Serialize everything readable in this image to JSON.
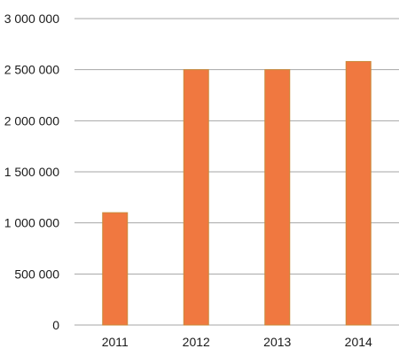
{
  "chart_data": {
    "type": "bar",
    "title": "",
    "xlabel": "",
    "ylabel": "",
    "categories": [
      "2011",
      "2012",
      "2013",
      "2014"
    ],
    "values": [
      1100000,
      2500000,
      2500000,
      2580000
    ],
    "ylim": [
      0,
      3000000
    ],
    "yticks": [
      0,
      500000,
      1000000,
      1500000,
      2000000,
      2500000,
      3000000
    ],
    "ytick_labels": [
      "0",
      "500 000",
      "1 000 000",
      "1 500 000",
      "2 000 000",
      "2 500 000",
      "3 000 000"
    ],
    "grid": true,
    "legend": "none",
    "bar_color": "#f07840",
    "bar_edge_color": "#c98a3a"
  }
}
